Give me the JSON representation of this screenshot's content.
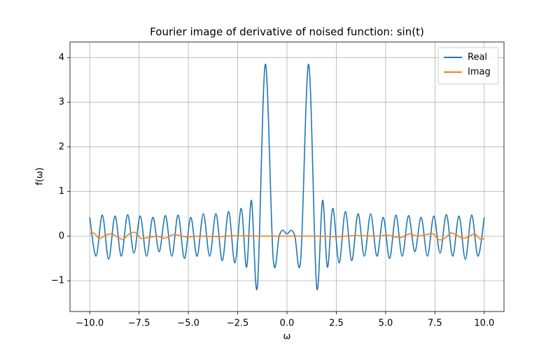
{
  "chart_data": {
    "type": "line",
    "title": "Fourier image of derivative of noised function: sin(t)",
    "x_label": "ω",
    "y_label": "f(ω)",
    "xlim": [
      -11,
      11
    ],
    "ylim": [
      -1.69,
      4.35
    ],
    "xticks": [
      {
        "value": -10,
        "label": "−10.0"
      },
      {
        "value": -7.5,
        "label": "−7.5"
      },
      {
        "value": -5,
        "label": "−5.0"
      },
      {
        "value": -2.5,
        "label": "−2.5"
      },
      {
        "value": 0,
        "label": "0.0"
      },
      2.5,
      {
        "value": 5,
        "label": "5.0"
      },
      7.5,
      {
        "value": 10,
        "label": "10.0"
      }
    ],
    "yticks": [
      {
        "value": -1,
        "label": "−1"
      },
      0,
      1,
      2,
      3,
      4
    ],
    "grid": true,
    "legend": "upper right",
    "series": [
      {
        "name": "Real",
        "color": "#1f77b4",
        "x": [
          -10,
          -9.68,
          -9.36,
          -9.04,
          -8.72,
          -8.4,
          -8.08,
          -7.76,
          -7.44,
          -7.12,
          -6.8,
          -6.48,
          -6.16,
          -5.84,
          -5.52,
          -5.2,
          -4.88,
          -4.56,
          -4.24,
          -3.92,
          -3.6,
          -3.28,
          -2.96,
          -2.64,
          -2.32,
          -2.05,
          -1.8,
          -1.5,
          -1.1,
          -0.7,
          -0.4,
          -0.22,
          0,
          0.22,
          0.4,
          0.7,
          1.1,
          1.5,
          1.8,
          2.05,
          2.32,
          2.64,
          2.96,
          3.28,
          3.6,
          3.92,
          4.24,
          4.56,
          4.88,
          5.2,
          5.52,
          5.84,
          6.16,
          6.48,
          6.8,
          7.12,
          7.44,
          7.76,
          8.08,
          8.4,
          8.72,
          9.04,
          9.36,
          9.68,
          10
        ],
        "values": [
          0.42,
          -0.45,
          0.47,
          -0.52,
          0.45,
          -0.45,
          0.48,
          -0.38,
          0.45,
          -0.45,
          0.42,
          -0.35,
          0.46,
          -0.45,
          0.47,
          -0.5,
          0.42,
          -0.45,
          0.5,
          -0.45,
          0.5,
          -0.55,
          0.55,
          -0.6,
          0.62,
          -0.7,
          0.8,
          -1.13,
          3.85,
          -0.5,
          0.0,
          0.13,
          0.05,
          0.13,
          0.0,
          -0.5,
          3.85,
          -1.13,
          0.8,
          -0.7,
          0.62,
          -0.6,
          0.55,
          -0.55,
          0.5,
          -0.45,
          0.5,
          -0.45,
          0.42,
          -0.5,
          0.47,
          -0.45,
          0.46,
          -0.35,
          0.42,
          -0.45,
          0.45,
          -0.38,
          0.48,
          -0.45,
          0.45,
          -0.52,
          0.47,
          -0.45,
          0.42
        ]
      },
      {
        "name": "Imag",
        "color": "#ff7f0e",
        "x": [
          -10,
          -9.8,
          -9.5,
          -9.2,
          -8.9,
          -8.6,
          -8.3,
          -8,
          -7.7,
          -7.4,
          -7,
          -6.6,
          -6.2,
          -5.8,
          -5.5,
          -5.1,
          -4.5,
          -3.5,
          -2.5,
          -1.5,
          0,
          1.5,
          2.5,
          3.5,
          4.5,
          5.1,
          5.5,
          5.8,
          6.2,
          6.6,
          7,
          7.4,
          7.7,
          8,
          8.3,
          8.6,
          8.9,
          9.2,
          9.5,
          9.8,
          10
        ],
        "values": [
          0.05,
          0.07,
          -0.05,
          0.02,
          0.05,
          -0.02,
          -0.07,
          0.05,
          0.08,
          -0.05,
          -0.03,
          0,
          -0.05,
          0.03,
          0.02,
          -0.02,
          0,
          -0.01,
          0.01,
          0,
          0,
          0,
          -0.01,
          0.01,
          0,
          0.02,
          -0.02,
          -0.03,
          0.05,
          0,
          0.03,
          0.05,
          -0.08,
          -0.05,
          0.07,
          0.02,
          -0.05,
          -0.02,
          0.05,
          -0.07,
          -0.05
        ]
      }
    ]
  }
}
